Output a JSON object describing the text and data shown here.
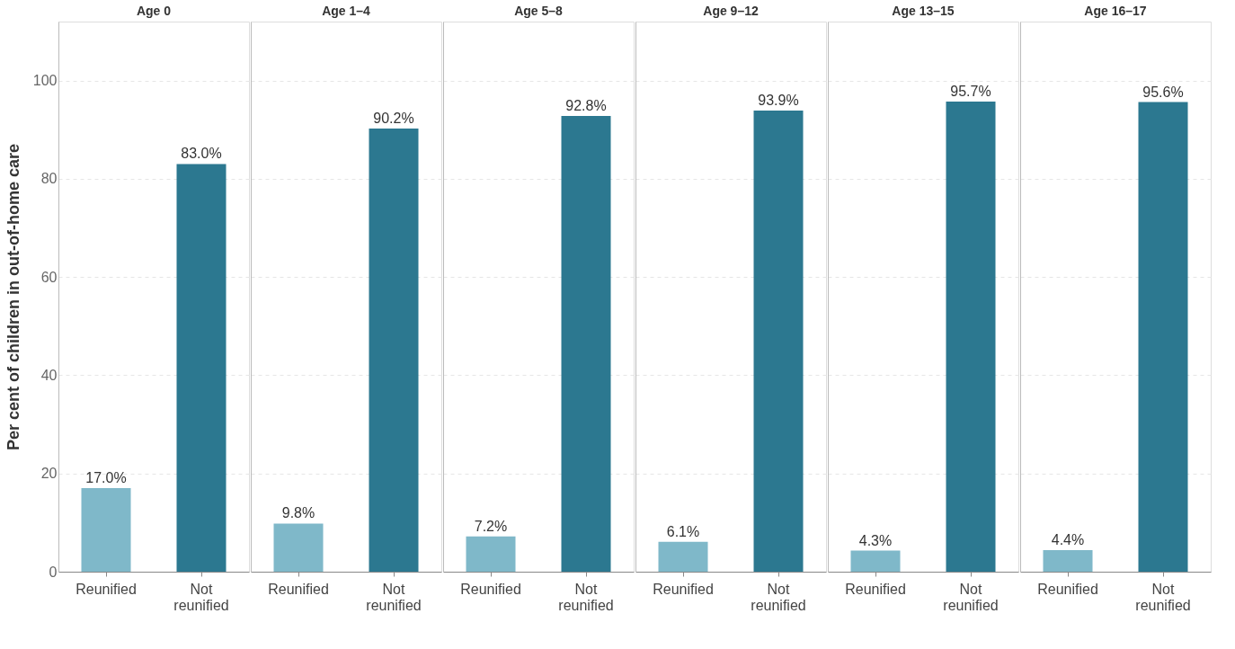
{
  "chart_data": [
    {
      "type": "bar",
      "title": "Age 0",
      "ylabel": "Per cent of children in out-of-home care",
      "categories": [
        "Reunified",
        "Not reunified"
      ],
      "values": [
        17.0,
        83.0
      ],
      "colors": [
        "#7fb8c9",
        "#2c7890"
      ],
      "value_labels": [
        "17.0%",
        "83.0%"
      ],
      "ylim": [
        0,
        112
      ],
      "yticks": [
        0,
        20,
        40,
        60,
        80,
        100
      ],
      "grid": "y"
    },
    {
      "type": "bar",
      "title": "Age  1–4",
      "categories": [
        "Reunified",
        "Not reunified"
      ],
      "values": [
        9.8,
        90.2
      ],
      "colors": [
        "#7fb8c9",
        "#2c7890"
      ],
      "value_labels": [
        "9.8%",
        "90.2%"
      ],
      "ylim": [
        0,
        112
      ],
      "yticks": [
        0,
        20,
        40,
        60,
        80,
        100
      ],
      "grid": "y",
      "tick_labels": "x"
    },
    {
      "type": "bar",
      "title": "Age 5–8",
      "categories": [
        "Reunified",
        "Not reunified"
      ],
      "values": [
        7.2,
        92.8
      ],
      "colors": [
        "#7fb8c9",
        "#2c7890"
      ],
      "value_labels": [
        "7.2%",
        "92.8%"
      ],
      "ylim": [
        0,
        112
      ],
      "yticks": [
        0,
        20,
        40,
        60,
        80,
        100
      ],
      "grid": "y",
      "tick_labels": "x"
    },
    {
      "type": "bar",
      "title": "Age 9–12",
      "categories": [
        "Reunified",
        "Not reunified"
      ],
      "values": [
        6.1,
        93.9
      ],
      "colors": [
        "#7fb8c9",
        "#2c7890"
      ],
      "value_labels": [
        "6.1%",
        "93.9%"
      ],
      "ylim": [
        0,
        112
      ],
      "yticks": [
        0,
        20,
        40,
        60,
        80,
        100
      ],
      "grid": "y",
      "tick_labels": "x"
    },
    {
      "type": "bar",
      "title": "Age 13–15",
      "categories": [
        "Reunified",
        "Not reunified"
      ],
      "values": [
        4.3,
        95.7
      ],
      "colors": [
        "#7fb8c9",
        "#2c7890"
      ],
      "value_labels": [
        "4.3%",
        "95.7%"
      ],
      "ylim": [
        0,
        112
      ],
      "yticks": [
        0,
        20,
        40,
        60,
        80,
        100
      ],
      "grid": "y",
      "tick_labels": "x"
    },
    {
      "type": "bar",
      "title": "Age 16–17",
      "categories": [
        "Reunified",
        "Not reunified"
      ],
      "values": [
        4.4,
        95.6
      ],
      "colors": [
        "#7fb8c9",
        "#2c7890"
      ],
      "value_labels": [
        "4.4%",
        "95.6%"
      ],
      "ylim": [
        0,
        112
      ],
      "yticks": [
        0,
        20,
        40,
        60,
        80,
        100
      ],
      "grid": "y",
      "tick_labels": "x"
    }
  ]
}
